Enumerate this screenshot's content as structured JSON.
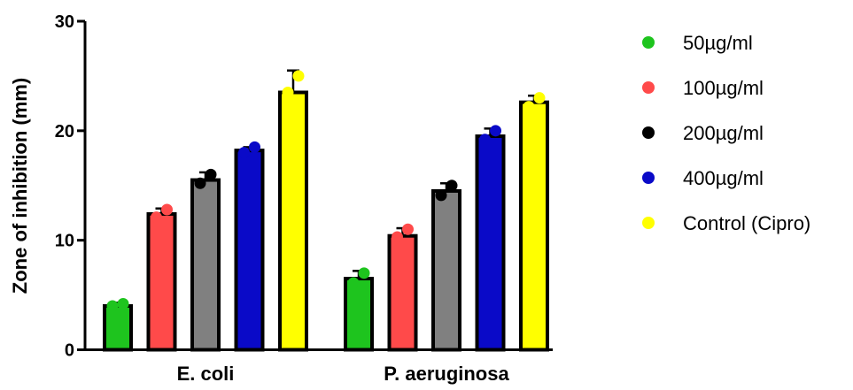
{
  "chart_data": {
    "type": "bar",
    "title": "",
    "xlabel": "",
    "ylabel": "Zone of inhibition (mm)",
    "ylim": [
      0,
      30
    ],
    "yticks": [
      0,
      10,
      20,
      30
    ],
    "legend_position": "right",
    "grid": false,
    "categories": [
      "E. coli",
      "P. aeruginosa"
    ],
    "series": [
      {
        "name": "50µg/ml",
        "color": "#1ec41e",
        "values": [
          4.0,
          6.5
        ],
        "errors": [
          0.3,
          0.7
        ],
        "points": [
          [
            4.0,
            4.2
          ],
          [
            6.1,
            7.0
          ]
        ]
      },
      {
        "name": "100µg/ml",
        "color": "#ff4a4a",
        "values": [
          12.4,
          10.4
        ],
        "errors": [
          0.5,
          0.7
        ],
        "points": [
          [
            12.1,
            12.8
          ],
          [
            10.3,
            11.0
          ]
        ]
      },
      {
        "name": "200µg/ml",
        "color": "#000000",
        "values": [
          15.5,
          14.5
        ],
        "errors": [
          0.7,
          0.7
        ],
        "points": [
          [
            15.2,
            16.0
          ],
          [
            14.1,
            15.0
          ]
        ]
      },
      {
        "name": "400µg/ml",
        "color": "#0a0ac8",
        "values": [
          18.2,
          19.5
        ],
        "errors": [
          0.3,
          0.7
        ],
        "points": [
          [
            18.0,
            18.5
          ],
          [
            19.2,
            20.0
          ]
        ]
      },
      {
        "name": "Control (Cipro)",
        "color": "#ffff00",
        "values": [
          23.5,
          22.6
        ],
        "errors": [
          2.0,
          0.6
        ],
        "points": [
          [
            23.5,
            25.0
          ],
          [
            22.2,
            23.0
          ]
        ]
      }
    ]
  }
}
